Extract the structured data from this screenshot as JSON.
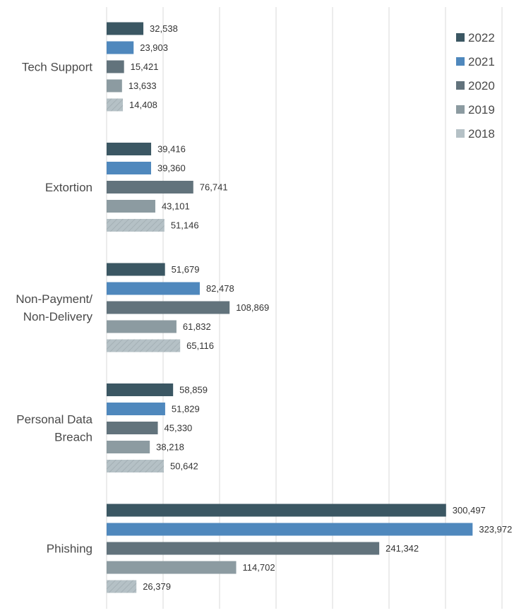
{
  "chart_data": {
    "type": "bar",
    "orientation": "horizontal",
    "categories": [
      [
        "Tech Support"
      ],
      [
        "Extortion"
      ],
      [
        "Non-Payment/",
        "Non-Delivery"
      ],
      [
        "Personal Data",
        "Breach"
      ],
      [
        "Phishing"
      ]
    ],
    "series": [
      {
        "name": "2022",
        "color": "#3b5763",
        "values": [
          32538,
          39416,
          51679,
          58859,
          300497
        ]
      },
      {
        "name": "2021",
        "color": "#4f88bd",
        "values": [
          23903,
          39360,
          82478,
          51829,
          323972
        ]
      },
      {
        "name": "2020",
        "color": "#62737c",
        "values": [
          15421,
          76741,
          108869,
          45330,
          241342
        ]
      },
      {
        "name": "2019",
        "color": "#8c9ba1",
        "values": [
          13633,
          43101,
          61832,
          38218,
          114702
        ]
      },
      {
        "name": "2018",
        "color": "#b5c1c6",
        "values": [
          14408,
          51146,
          65116,
          50642,
          26379
        ]
      }
    ],
    "xlim": [
      0,
      350000
    ],
    "grid": true,
    "legend_position": "top-right",
    "number_format": "thousands-comma"
  }
}
